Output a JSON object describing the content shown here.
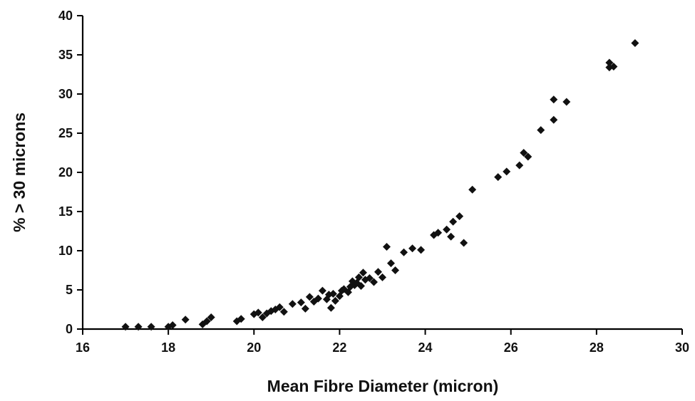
{
  "chart_data": {
    "type": "scatter",
    "title": "",
    "xlabel": "Mean Fibre Diameter (micron)",
    "ylabel": "% > 30 microns",
    "xlim": [
      16,
      30
    ],
    "ylim": [
      0,
      40
    ],
    "x_ticks": [
      16,
      18,
      20,
      22,
      24,
      26,
      28,
      30
    ],
    "y_ticks": [
      0,
      5,
      10,
      15,
      20,
      25,
      30,
      35,
      40
    ],
    "x_tick_labels": [
      "16",
      "18",
      "20",
      "22",
      "24",
      "26",
      "28",
      "30"
    ],
    "y_tick_labels": [
      "0",
      "5",
      "10",
      "15",
      "20",
      "25",
      "30",
      "35",
      "40"
    ],
    "grid": false,
    "marker": "diamond",
    "colors": {
      "marker": "#111111",
      "axis": "#000000"
    },
    "series": [
      {
        "points": [
          [
            17.0,
            0.3
          ],
          [
            17.3,
            0.3
          ],
          [
            17.6,
            0.3
          ],
          [
            18.0,
            0.3
          ],
          [
            18.1,
            0.5
          ],
          [
            18.4,
            1.2
          ],
          [
            18.8,
            0.6
          ],
          [
            18.9,
            1.0
          ],
          [
            19.0,
            1.5
          ],
          [
            19.6,
            1.0
          ],
          [
            19.7,
            1.3
          ],
          [
            20.0,
            1.9
          ],
          [
            20.1,
            2.1
          ],
          [
            20.2,
            1.5
          ],
          [
            20.3,
            2.0
          ],
          [
            20.4,
            2.3
          ],
          [
            20.5,
            2.5
          ],
          [
            20.6,
            2.8
          ],
          [
            20.7,
            2.2
          ],
          [
            20.9,
            3.2
          ],
          [
            21.1,
            3.4
          ],
          [
            21.2,
            2.6
          ],
          [
            21.3,
            4.1
          ],
          [
            21.4,
            3.5
          ],
          [
            21.5,
            3.9
          ],
          [
            21.6,
            4.9
          ],
          [
            21.7,
            3.8
          ],
          [
            21.75,
            4.4
          ],
          [
            21.8,
            2.7
          ],
          [
            21.85,
            4.5
          ],
          [
            21.9,
            3.6
          ],
          [
            22.0,
            4.2
          ],
          [
            22.05,
            4.9
          ],
          [
            22.1,
            5.1
          ],
          [
            22.2,
            4.7
          ],
          [
            22.25,
            5.4
          ],
          [
            22.3,
            6.1
          ],
          [
            22.35,
            5.6
          ],
          [
            22.4,
            5.9
          ],
          [
            22.45,
            6.6
          ],
          [
            22.5,
            5.5
          ],
          [
            22.55,
            7.2
          ],
          [
            22.6,
            6.3
          ],
          [
            22.7,
            6.5
          ],
          [
            22.8,
            6.0
          ],
          [
            22.9,
            7.3
          ],
          [
            23.0,
            6.6
          ],
          [
            23.1,
            10.5
          ],
          [
            23.2,
            8.4
          ],
          [
            23.3,
            7.5
          ],
          [
            23.5,
            9.8
          ],
          [
            23.7,
            10.3
          ],
          [
            23.9,
            10.1
          ],
          [
            24.2,
            12.0
          ],
          [
            24.3,
            12.3
          ],
          [
            24.5,
            12.7
          ],
          [
            24.6,
            11.8
          ],
          [
            24.65,
            13.7
          ],
          [
            24.8,
            14.4
          ],
          [
            24.9,
            11.0
          ],
          [
            25.1,
            17.8
          ],
          [
            25.7,
            19.4
          ],
          [
            25.9,
            20.1
          ],
          [
            26.2,
            20.9
          ],
          [
            26.3,
            22.5
          ],
          [
            26.4,
            22.0
          ],
          [
            26.7,
            25.4
          ],
          [
            27.0,
            29.3
          ],
          [
            27.0,
            26.7
          ],
          [
            27.3,
            29.0
          ],
          [
            28.3,
            34.0
          ],
          [
            28.3,
            33.4
          ],
          [
            28.4,
            33.5
          ],
          [
            28.9,
            36.5
          ]
        ]
      }
    ]
  }
}
